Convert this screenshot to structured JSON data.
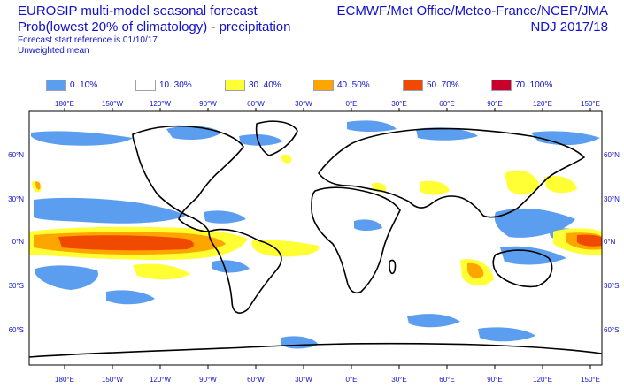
{
  "title": {
    "line1": "EUROSIP multi-model seasonal forecast",
    "line2": "Prob(lowest 20% of climatology) - precipitation",
    "line3": "Forecast start reference is 01/10/17",
    "line4": "Unweighted mean"
  },
  "header_right": {
    "line1": "ECMWF/Met Office/Meteo-France/NCEP/JMA",
    "line2": "NDJ 2017/18"
  },
  "legend": [
    {
      "label": "0..10%",
      "color": "#5b9ef0"
    },
    {
      "label": "10..30%",
      "color": "#ffffff"
    },
    {
      "label": "30..40%",
      "color": "#ffff33"
    },
    {
      "label": "40..50%",
      "color": "#ffa500"
    },
    {
      "label": "50..70%",
      "color": "#f04a00"
    },
    {
      "label": "70..100%",
      "color": "#c8002a"
    }
  ],
  "axes": {
    "lon_labels": [
      "180°E",
      "150°W",
      "120°W",
      "90°W",
      "60°W",
      "30°W",
      "0°E",
      "30°E",
      "60°E",
      "90°E",
      "120°E",
      "150°E"
    ],
    "lat_left": [
      "60°N",
      "30°N",
      "0°N",
      "30°S",
      "60°S"
    ],
    "lat_right": [
      "60°N",
      "30°N",
      "0°N",
      "30°S",
      "60°S"
    ]
  }
}
